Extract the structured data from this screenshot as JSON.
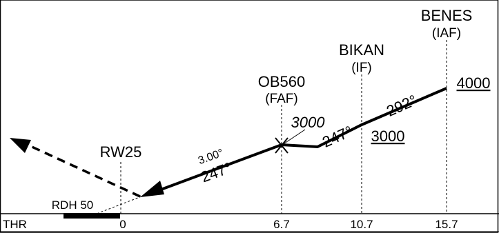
{
  "waypoints": [
    {
      "name": "BENES",
      "role": "(IAF)",
      "altitude": "4000",
      "distance": "15.7"
    },
    {
      "name": "BIKAN",
      "role": "(IF)",
      "altitude": "3000",
      "distance": "10.7"
    },
    {
      "name": "OB560",
      "role": "(FAF)",
      "altitude": "3000",
      "distance": "6.7"
    }
  ],
  "runway": {
    "name": "RW25",
    "rdh": "RDH 50",
    "threshold": "THR",
    "distance": "0"
  },
  "segments": {
    "benes_bikan": "292°",
    "bikan_fap": "247°",
    "final_course": "247°",
    "glide_angle": "3.00°"
  }
}
